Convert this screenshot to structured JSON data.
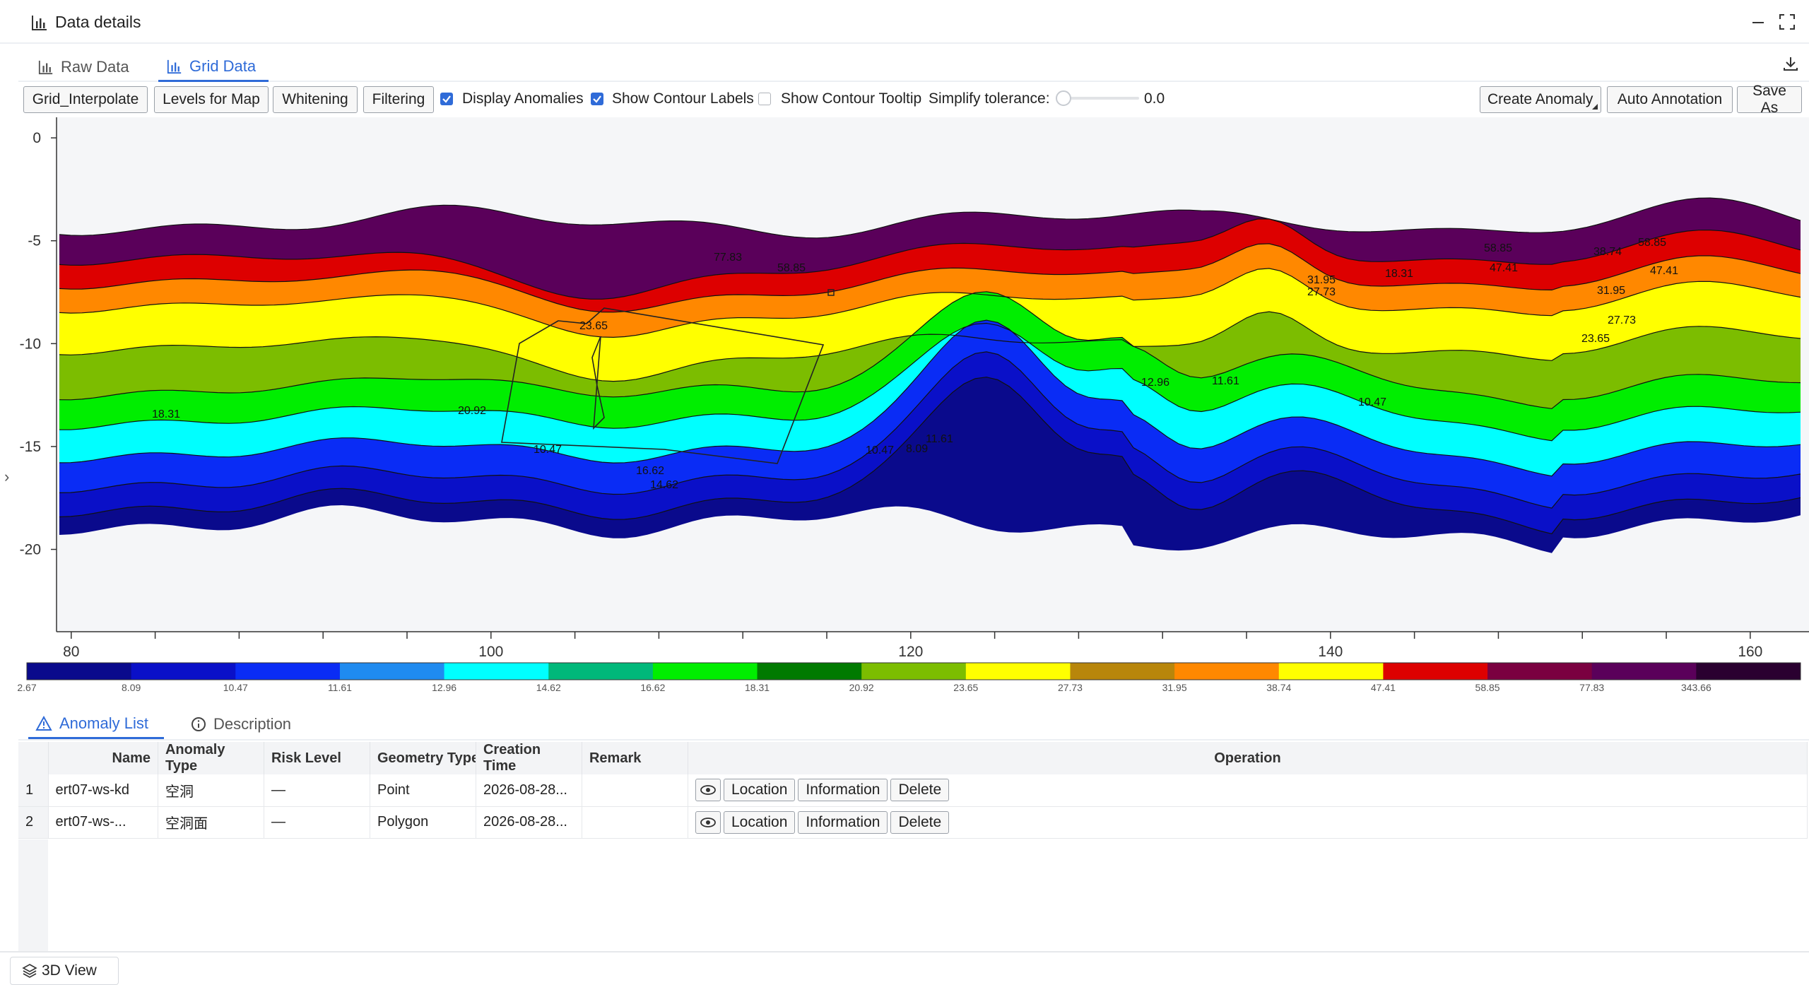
{
  "window": {
    "title": "Data details"
  },
  "tabs": [
    {
      "label": "Raw Data"
    },
    {
      "label": "Grid Data"
    }
  ],
  "toolbar": {
    "grid_interpolate": "Grid_Interpolate",
    "levels_for_map": "Levels for Map",
    "whitening": "Whitening",
    "filtering": "Filtering",
    "display_anomalies": "Display Anomalies",
    "show_contour_labels": "Show Contour Labels",
    "show_contour_tooltip": "Show Contour Tooltip",
    "simplify_tolerance_label": "Simplify tolerance:",
    "simplify_tolerance_value": "0.0",
    "create_anomaly": "Create Anomaly",
    "auto_annotation": "Auto Annotation",
    "save_as": "Save As",
    "display_anomalies_checked": true,
    "show_contour_labels_checked": true,
    "show_contour_tooltip_checked": false
  },
  "chart_data": {
    "type": "heatmap",
    "title": "",
    "xlabel": "",
    "ylabel": "",
    "xlim": [
      79.3,
      162.8
    ],
    "ylim": [
      -24,
      1
    ],
    "x_ticks": [
      "80",
      "100",
      "120",
      "140",
      "160"
    ],
    "y_ticks": [
      "0",
      "-5",
      "-10",
      "-15",
      "-20"
    ],
    "colorbar_labels": [
      "2.67",
      "8.09",
      "10.47",
      "11.61",
      "12.96",
      "14.62",
      "16.62",
      "18.31",
      "20.92",
      "23.65",
      "27.73",
      "31.95",
      "38.74",
      "47.41",
      "58.85",
      "77.83",
      "343.66"
    ],
    "colorbar_colors": [
      "#0a0a8c",
      "#0a10c8",
      "#0a2cf5",
      "#1f8bf0",
      "#00ffff",
      "#00b87a",
      "#00ee00",
      "#007a00",
      "#7cbd00",
      "#ffff00",
      "#b8860b",
      "#ff8800",
      "#ffff00",
      "#dd0000",
      "#7a0040",
      "#5a005a",
      "#2a0030"
    ],
    "contour_labels": [
      "77.83",
      "58.85",
      "23.65",
      "20.92",
      "18.31",
      "10.47",
      "11.61",
      "16.62",
      "14.62",
      "10.47",
      "12.96",
      "11.61",
      "10.47",
      "8.09",
      "31.95",
      "27.73",
      "18.31",
      "58.85",
      "47.41",
      "38.74",
      "58.85",
      "47.41",
      "31.95",
      "27.73",
      "23.65"
    ],
    "legend": "bottom colorbar",
    "grid": false
  },
  "bottom_tabs": [
    {
      "label": "Anomaly List"
    },
    {
      "label": "Description"
    }
  ],
  "table": {
    "headers": [
      "Name",
      "Anomaly Type",
      "Risk Level",
      "Geometry Type",
      "Creation Time",
      "Remark",
      "Operation"
    ],
    "rows": [
      {
        "index": "1",
        "name": "ert07-ws-kd",
        "type": "空洞",
        "risk": "—",
        "geometry": "Point",
        "time": "2026-08-28...",
        "remark": ""
      },
      {
        "index": "2",
        "name": "ert07-ws-...",
        "type": "空洞面",
        "risk": "—",
        "geometry": "Polygon",
        "time": "2026-08-28...",
        "remark": ""
      }
    ],
    "op_location": "Location",
    "op_information": "Information",
    "op_delete": "Delete"
  },
  "footer": {
    "view3d": "3D View"
  }
}
